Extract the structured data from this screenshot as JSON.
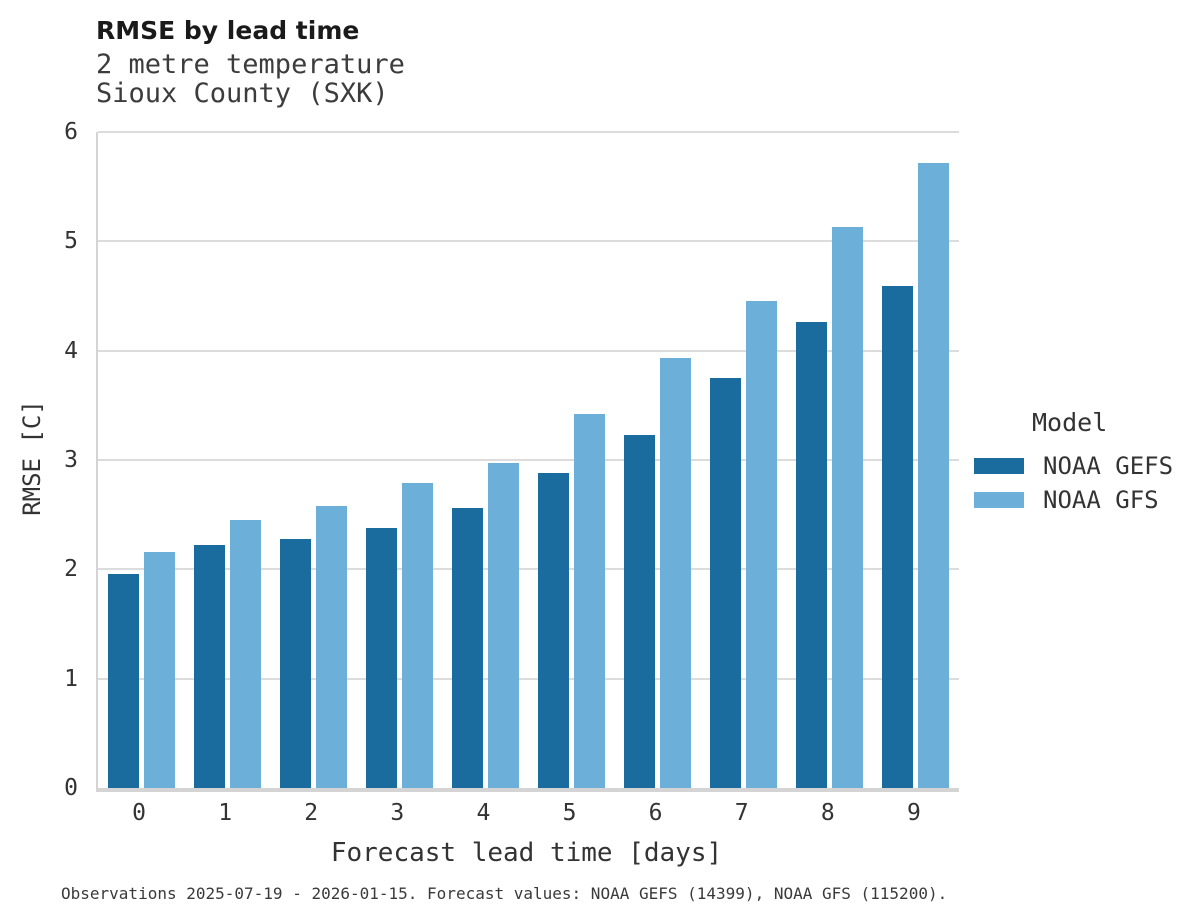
{
  "header": {
    "title": "RMSE by lead time",
    "subtitle_line1": "2 metre temperature",
    "subtitle_line2": "Sioux County (SXK)"
  },
  "caption": "Observations 2025-07-19 - 2026-01-15. Forecast values: NOAA GEFS (14399), NOAA GFS (115200).",
  "legend": {
    "title": "Model",
    "entries": [
      {
        "label": "NOAA GEFS",
        "color": "#1a6c9e"
      },
      {
        "label": "NOAA GFS",
        "color": "#6cb0d9"
      }
    ]
  },
  "colors": {
    "gefs_bar": "#1a6c9e",
    "gfs_bar": "#6cb0d9",
    "gridline": "#dcdcdc",
    "axis_spine": "#d4d4d4",
    "text": "#333333"
  },
  "chart_data": {
    "type": "bar",
    "title": "RMSE by lead time",
    "subtitle": [
      "2 metre temperature",
      "Sioux County (SXK)"
    ],
    "categories": [
      "0",
      "1",
      "2",
      "3",
      "4",
      "5",
      "6",
      "7",
      "8",
      "9"
    ],
    "series": [
      {
        "name": "NOAA GEFS",
        "color": "#1a6c9e",
        "values": [
          1.96,
          2.22,
          2.28,
          2.38,
          2.56,
          2.88,
          3.23,
          3.75,
          4.26,
          4.59
        ]
      },
      {
        "name": "NOAA GFS",
        "color": "#6cb0d9",
        "values": [
          2.16,
          2.45,
          2.58,
          2.79,
          2.97,
          3.42,
          3.93,
          4.45,
          5.13,
          5.72
        ]
      }
    ],
    "xlabel": "Forecast lead time [days]",
    "ylabel": "RMSE [C]",
    "ylim": [
      0,
      6
    ],
    "yticks": [
      0,
      1,
      2,
      3,
      4,
      5,
      6
    ],
    "grid": "horizontal",
    "legend_position": "right",
    "legend_title": "Model",
    "caption": "Observations 2025-07-19 - 2026-01-15. Forecast values: NOAA GEFS (14399), NOAA GFS (115200)."
  }
}
